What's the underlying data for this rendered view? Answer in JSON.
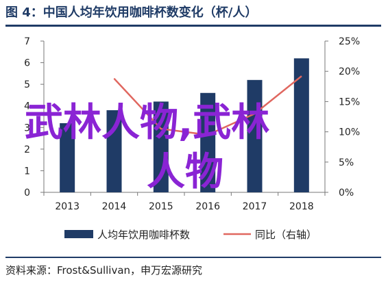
{
  "title": "图 4：中国人均年饮用咖啡杯数变化（杯/人）",
  "source": "资料来源：Frost&Sullivan，申万宏源研究",
  "watermark": {
    "line1": "武林人物,武林",
    "line2": "人物",
    "color": "#8a24d4"
  },
  "colors": {
    "bar": "#1f3b66",
    "line": "#e0675f",
    "rule": "#1f3b66"
  },
  "chart_data": {
    "type": "bar",
    "categories": [
      "2013",
      "2014",
      "2015",
      "2016",
      "2017",
      "2018"
    ],
    "series": [
      {
        "name": "人均年饮用咖啡杯数",
        "type": "bar",
        "axis": "left",
        "values": [
          3.2,
          3.8,
          4.2,
          4.6,
          5.2,
          6.2
        ]
      },
      {
        "name": "同比（右轴）",
        "type": "line",
        "axis": "right",
        "values": [
          null,
          18.8,
          10.5,
          9.5,
          13.0,
          19.2
        ]
      }
    ],
    "y_left": {
      "min": 0,
      "max": 7,
      "ticks": [
        "0",
        "1",
        "2",
        "3",
        "4",
        "5",
        "6",
        "7"
      ]
    },
    "y_right": {
      "min": 0,
      "max": 25,
      "ticks": [
        "0%",
        "5%",
        "10%",
        "15%",
        "20%",
        "25%"
      ]
    },
    "grid": false,
    "legend_position": "bottom"
  }
}
